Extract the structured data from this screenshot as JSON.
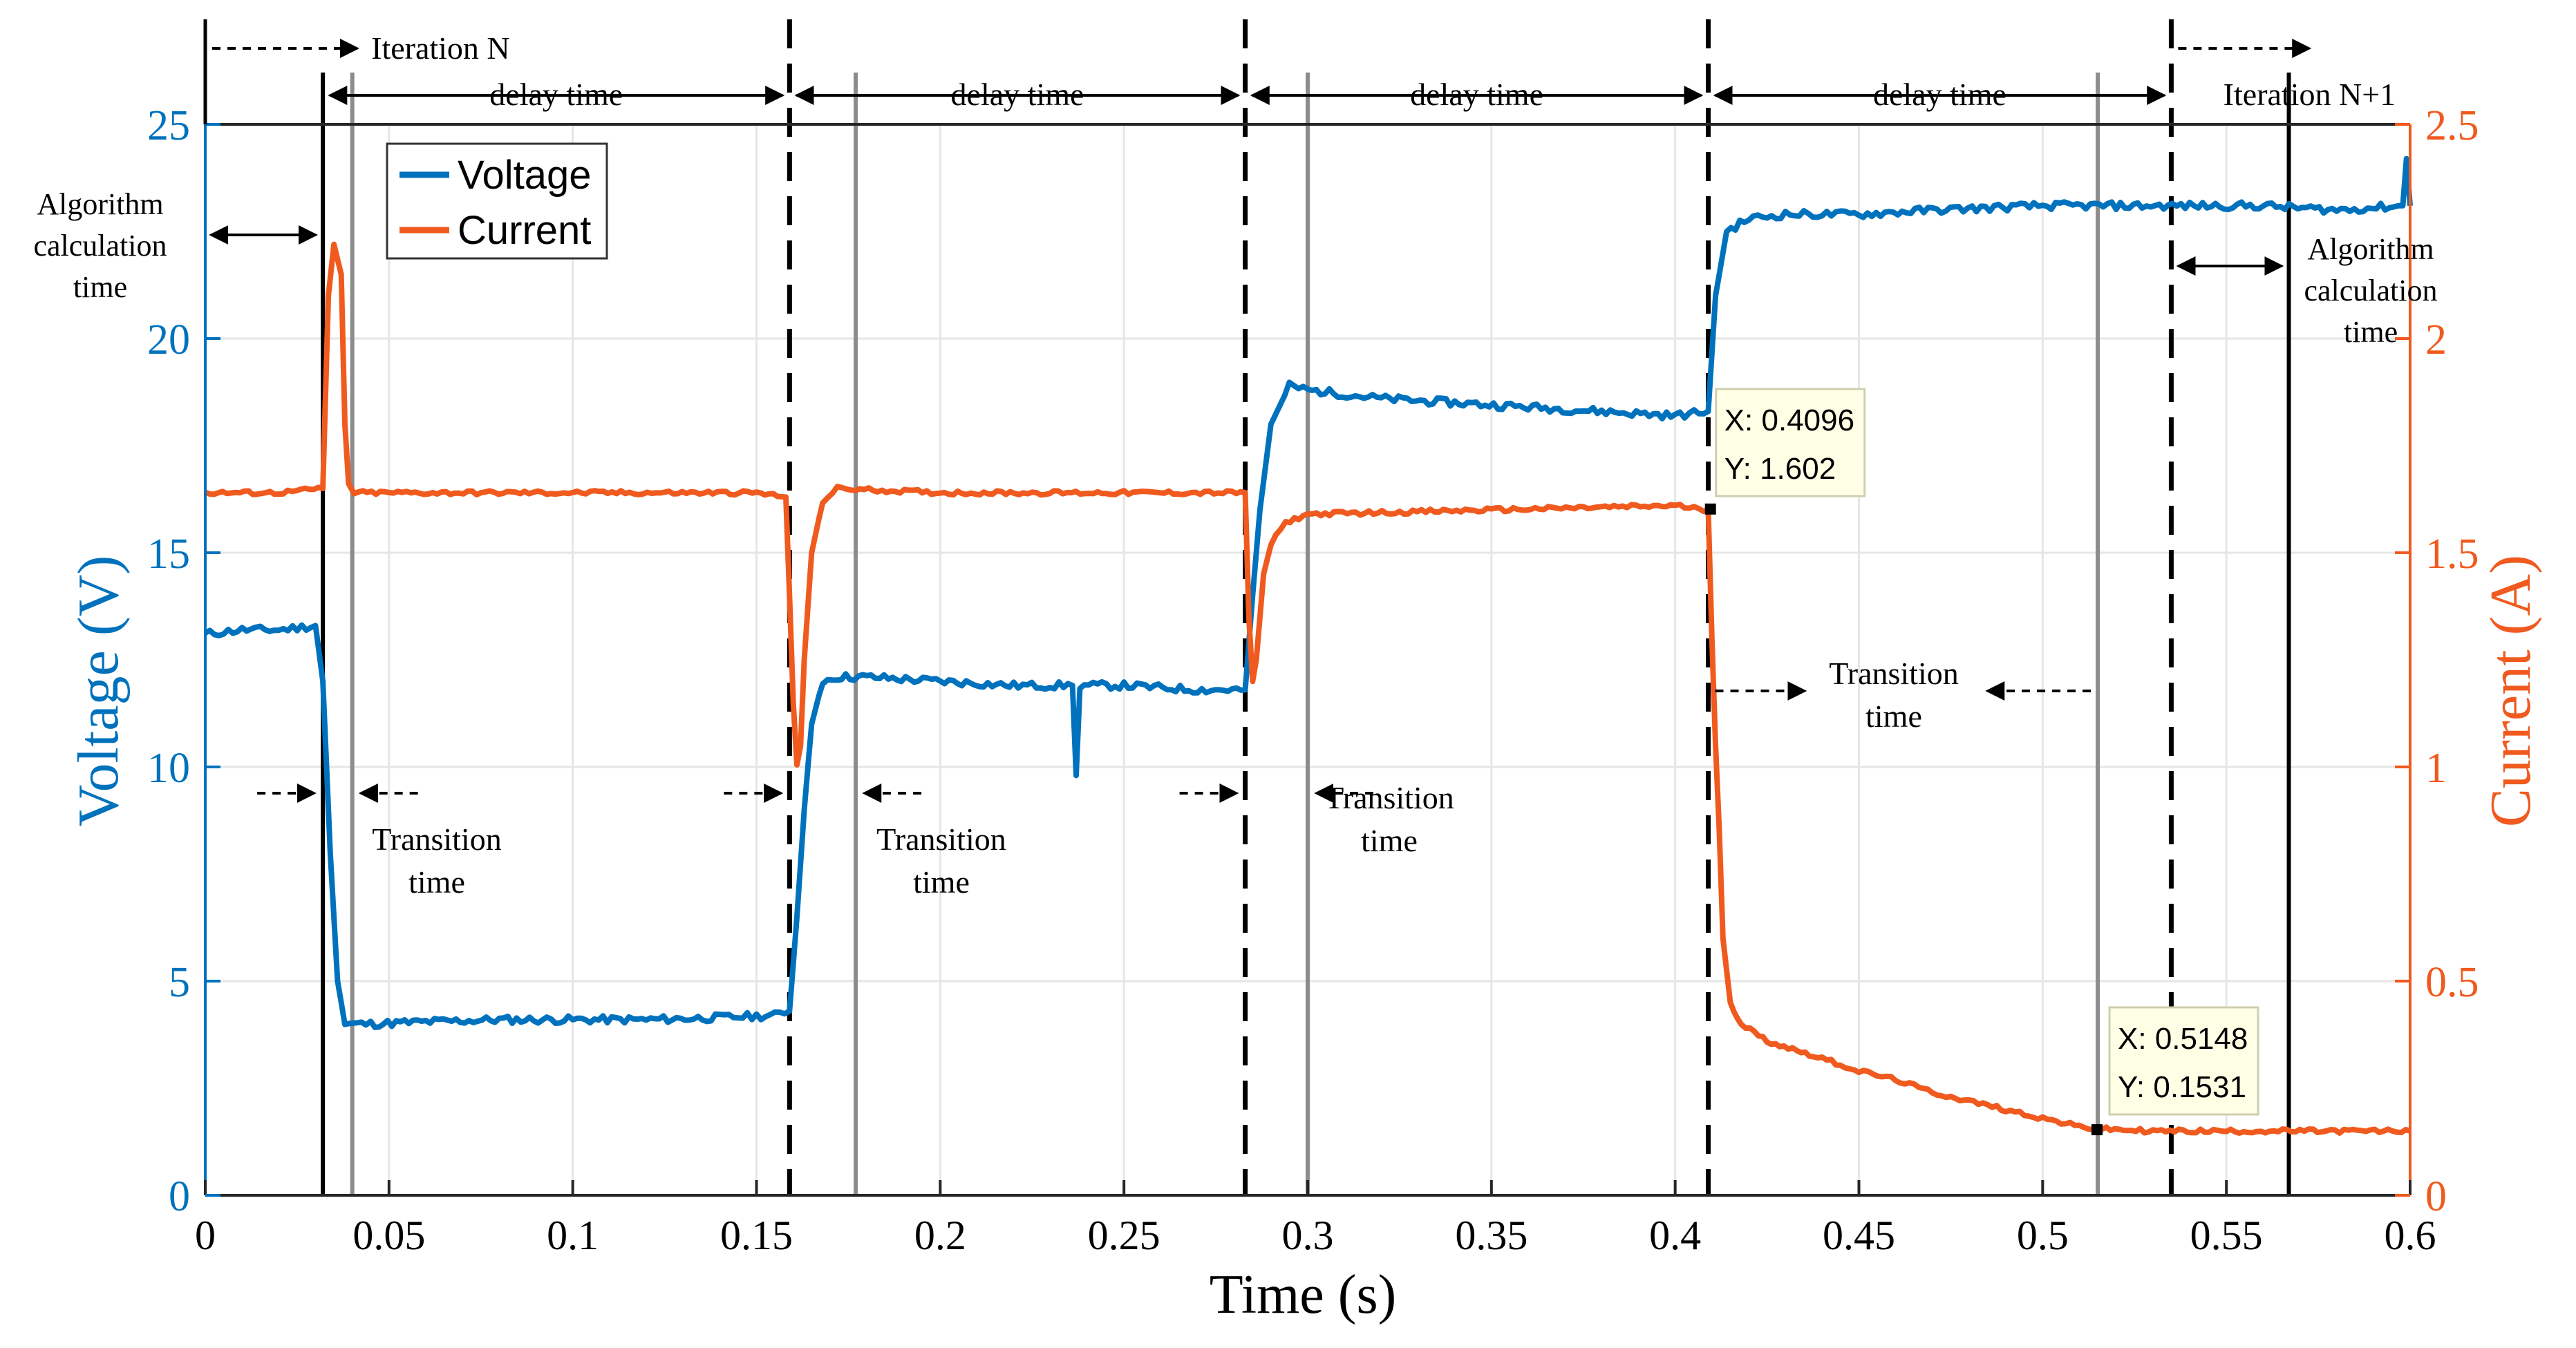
{
  "chart_data": {
    "type": "line",
    "xlabel": "Time (s)",
    "ylabel_left": "Voltage (V)",
    "ylabel_right": "Current (A)",
    "xlim": [
      0,
      0.6
    ],
    "ylim_left": [
      0,
      25
    ],
    "ylim_right": [
      0,
      2.5
    ],
    "x_ticks": [
      0,
      0.05,
      0.1,
      0.15,
      0.2,
      0.25,
      0.3,
      0.35,
      0.4,
      0.45,
      0.5,
      0.55,
      0.6
    ],
    "x_tick_labels": [
      "0",
      "0.05",
      "0.1",
      "0.15",
      "0.2",
      "0.25",
      "0.3",
      "0.35",
      "0.4",
      "0.45",
      "0.5",
      "0.55",
      "0.6"
    ],
    "y_left_ticks": [
      0,
      5,
      10,
      15,
      20,
      25
    ],
    "y_left_tick_labels": [
      "0",
      "5",
      "10",
      "15",
      "20",
      "25"
    ],
    "y_right_ticks": [
      0,
      0.5,
      1,
      1.5,
      2,
      2.5
    ],
    "y_right_tick_labels": [
      "0",
      "0.5",
      "1",
      "1.5",
      "2",
      "2.5"
    ],
    "grid": true,
    "legend": "top-left",
    "colors": {
      "voltage": "#0072BD",
      "current": "#F05A1E",
      "left_axis": "#0072BD",
      "right_axis": "#F05A1E"
    },
    "series": [
      {
        "name": "Voltage",
        "axis": "left",
        "x": [
          0,
          0.01,
          0.02,
          0.03,
          0.032,
          0.034,
          0.036,
          0.038,
          0.04,
          0.045,
          0.06,
          0.08,
          0.1,
          0.12,
          0.14,
          0.155,
          0.159,
          0.161,
          0.163,
          0.165,
          0.168,
          0.172,
          0.18,
          0.2,
          0.22,
          0.236,
          0.237,
          0.238,
          0.25,
          0.27,
          0.283,
          0.285,
          0.287,
          0.29,
          0.295,
          0.3,
          0.32,
          0.34,
          0.36,
          0.38,
          0.4,
          0.409,
          0.411,
          0.414,
          0.42,
          0.43,
          0.44,
          0.45,
          0.47,
          0.5,
          0.52,
          0.54,
          0.56,
          0.58,
          0.598,
          0.599,
          0.6
        ],
        "y": [
          13.1,
          13.2,
          13.2,
          13.3,
          12.0,
          8.0,
          5.0,
          4.0,
          4.0,
          4.0,
          4.05,
          4.1,
          4.1,
          4.1,
          4.15,
          4.2,
          4.3,
          6.5,
          9.0,
          11.0,
          12.0,
          12.1,
          12.1,
          12.0,
          11.9,
          11.9,
          9.8,
          11.9,
          11.9,
          11.8,
          11.8,
          14.0,
          16.0,
          18.0,
          18.9,
          18.8,
          18.6,
          18.5,
          18.4,
          18.3,
          18.2,
          18.3,
          21.0,
          22.5,
          22.8,
          22.9,
          22.9,
          22.9,
          23.0,
          23.1,
          23.1,
          23.1,
          23.1,
          23.0,
          23.1,
          24.2,
          23.1
        ]
      },
      {
        "name": "Current",
        "axis": "right",
        "x": [
          0,
          0.02,
          0.032,
          0.0335,
          0.035,
          0.037,
          0.038,
          0.039,
          0.0405,
          0.05,
          0.1,
          0.15,
          0.158,
          0.159,
          0.16,
          0.161,
          0.162,
          0.163,
          0.165,
          0.168,
          0.172,
          0.2,
          0.25,
          0.283,
          0.284,
          0.285,
          0.286,
          0.288,
          0.29,
          0.294,
          0.3,
          0.35,
          0.4,
          0.409,
          0.41,
          0.411,
          0.412,
          0.413,
          0.415,
          0.418,
          0.425,
          0.44,
          0.45,
          0.46,
          0.47,
          0.48,
          0.49,
          0.5,
          0.51,
          0.515,
          0.53,
          0.55,
          0.57,
          0.6
        ],
        "y": [
          1.64,
          1.64,
          1.65,
          2.1,
          2.22,
          2.15,
          1.8,
          1.66,
          1.64,
          1.64,
          1.64,
          1.64,
          1.63,
          1.4,
          1.15,
          1.0,
          1.05,
          1.25,
          1.5,
          1.62,
          1.65,
          1.64,
          1.64,
          1.64,
          1.35,
          1.2,
          1.25,
          1.45,
          1.52,
          1.57,
          1.59,
          1.6,
          1.61,
          1.6,
          1.3,
          1.05,
          0.85,
          0.6,
          0.45,
          0.4,
          0.36,
          0.32,
          0.29,
          0.27,
          0.24,
          0.22,
          0.2,
          0.18,
          0.16,
          0.155,
          0.15,
          0.15,
          0.15,
          0.15
        ]
      }
    ],
    "vertical_lines": {
      "solid_black": [
        0.032,
        0.567
      ],
      "gray": [
        0.04,
        0.177,
        0.3,
        0.515
      ],
      "dashed_black": [
        0.159,
        0.283,
        0.409,
        0.535
      ]
    },
    "datatips": [
      {
        "x": 0.4096,
        "y": 1.602,
        "axis": "right",
        "x_text": "X: 0.4096",
        "y_text": "Y: 1.602"
      },
      {
        "x": 0.5148,
        "y": 0.1531,
        "axis": "right",
        "x_text": "X: 0.5148",
        "y_text": "Y: 0.1531"
      }
    ],
    "annotations": {
      "iteration_n": "Iteration N",
      "iteration_n1": "Iteration N+1",
      "delay_time": "delay time",
      "algorithm_calc": [
        "Algorithm",
        "calculation",
        "time"
      ],
      "transition": [
        "Transition",
        "time"
      ]
    }
  }
}
